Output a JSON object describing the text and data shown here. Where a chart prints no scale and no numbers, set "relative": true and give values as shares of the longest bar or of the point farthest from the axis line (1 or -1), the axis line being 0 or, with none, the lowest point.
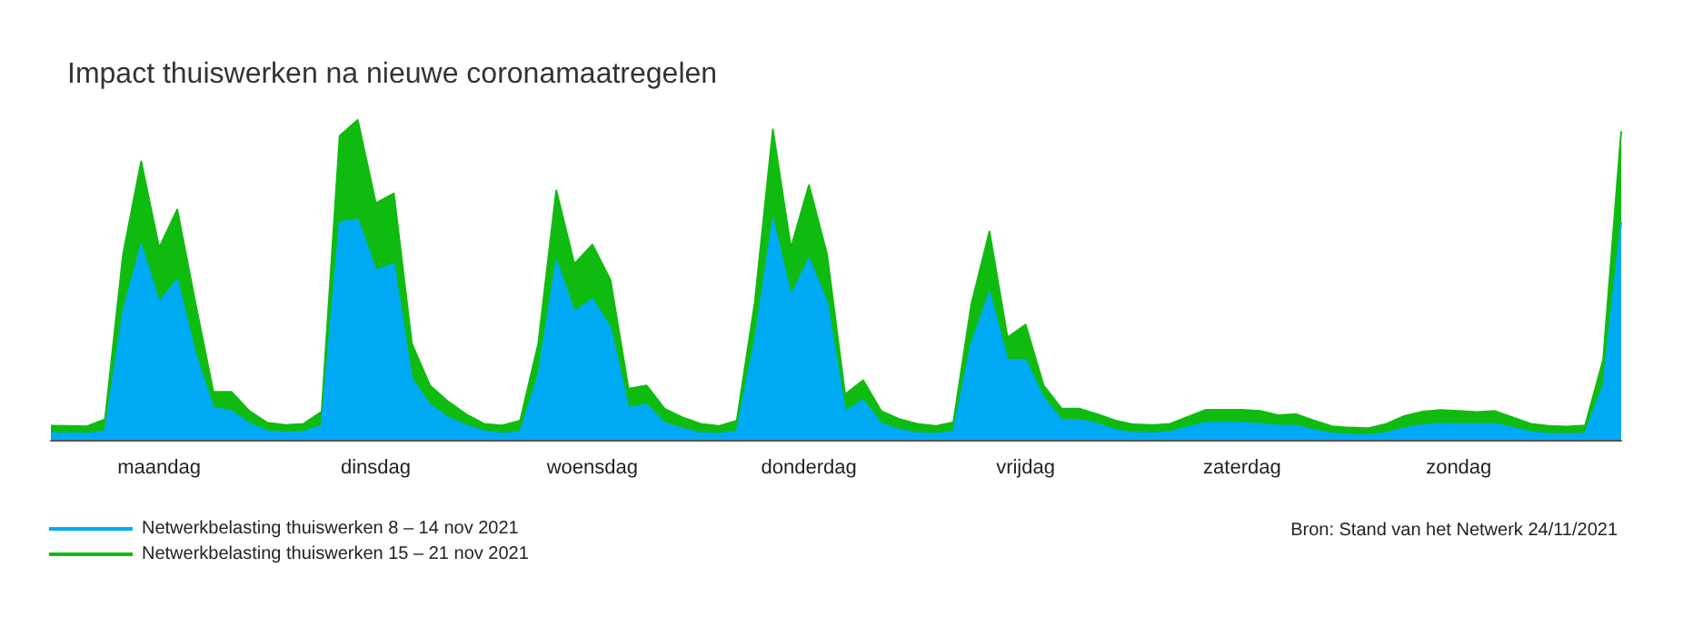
{
  "chart_data": {
    "type": "area",
    "title": "Impact thuiswerken na nieuwe coronamaatregelen",
    "relative": true,
    "categories": [
      null,
      null,
      null,
      null,
      null,
      null,
      "maandag",
      null,
      null,
      null,
      null,
      null,
      null,
      null,
      null,
      null,
      null,
      null,
      "dinsdag",
      null,
      null,
      null,
      null,
      null,
      null,
      null,
      null,
      null,
      null,
      null,
      "woensdag",
      null,
      null,
      null,
      null,
      null,
      null,
      null,
      null,
      null,
      null,
      null,
      "donderdag",
      null,
      null,
      null,
      null,
      null,
      null,
      null,
      null,
      null,
      null,
      null,
      "vrijdag",
      null,
      null,
      null,
      null,
      null,
      null,
      null,
      null,
      null,
      null,
      null,
      "zaterdag",
      null,
      null,
      null,
      null,
      null,
      null,
      null,
      null,
      null,
      null,
      null,
      "zondag",
      null,
      null,
      null,
      null,
      null,
      null,
      null,
      null,
      null
    ],
    "legend": "bottom left",
    "grid": false,
    "marker": "none",
    "annotations": [
      "Bron: Stand van het Netwerk 24/11/2021"
    ],
    "series": [
      {
        "name": "Netwerkbelasting thuiswerken 8 – 14 nov 2021",
        "color": "#00aaf5",
        "values": [
          0.021,
          0.02,
          0.019,
          0.027,
          0.4,
          0.61,
          0.43,
          0.5,
          0.27,
          0.1,
          0.09,
          0.05,
          0.027,
          0.022,
          0.025,
          0.044,
          0.68,
          0.69,
          0.53,
          0.55,
          0.19,
          0.11,
          0.07,
          0.045,
          0.027,
          0.02,
          0.025,
          0.2,
          0.56,
          0.4,
          0.44,
          0.35,
          0.1,
          0.11,
          0.053,
          0.035,
          0.021,
          0.019,
          0.027,
          0.31,
          0.69,
          0.45,
          0.566,
          0.43,
          0.088,
          0.124,
          0.05,
          0.032,
          0.021,
          0.019,
          0.025,
          0.301,
          0.46,
          0.25,
          0.25,
          0.13,
          0.062,
          0.062,
          0.05,
          0.03,
          0.021,
          0.021,
          0.025,
          0.04,
          0.053,
          0.053,
          0.053,
          0.05,
          0.044,
          0.044,
          0.03,
          0.02,
          0.016,
          0.015,
          0.022,
          0.036,
          0.046,
          0.05,
          0.05,
          0.049,
          0.05,
          0.038,
          0.024,
          0.019,
          0.018,
          0.02,
          0.17,
          0.68
        ]
      },
      {
        "name": "Netwerkbelasting thuiswerken 15 – 21 nov 2021",
        "color": "#10bb10",
        "values": [
          0.044,
          0.043,
          0.042,
          0.064,
          0.58,
          0.87,
          0.6,
          0.72,
          0.43,
          0.15,
          0.15,
          0.09,
          0.053,
          0.046,
          0.05,
          0.088,
          0.95,
          1,
          0.74,
          0.77,
          0.3,
          0.17,
          0.12,
          0.08,
          0.05,
          0.045,
          0.06,
          0.3,
          0.78,
          0.55,
          0.61,
          0.5,
          0.16,
          0.17,
          0.097,
          0.07,
          0.05,
          0.043,
          0.06,
          0.43,
          0.97,
          0.6,
          0.796,
          0.58,
          0.142,
          0.186,
          0.09,
          0.065,
          0.05,
          0.043,
          0.055,
          0.425,
          0.651,
          0.32,
          0.36,
          0.17,
          0.097,
          0.097,
          0.08,
          0.06,
          0.048,
          0.046,
          0.05,
          0.072,
          0.094,
          0.094,
          0.094,
          0.09,
          0.077,
          0.08,
          0.06,
          0.042,
          0.038,
          0.036,
          0.05,
          0.075,
          0.088,
          0.093,
          0.09,
          0.087,
          0.09,
          0.07,
          0.05,
          0.043,
          0.041,
          0.045,
          0.25,
          0.965
        ]
      }
    ]
  }
}
